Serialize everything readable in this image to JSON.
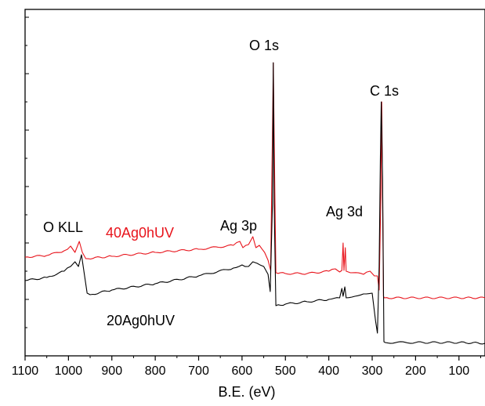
{
  "chart_data": {
    "type": "line",
    "title": "",
    "xlabel": "B.E. (eV)",
    "ylabel": "",
    "xlim": [
      1100,
      40
    ],
    "x_reversed": true,
    "xticks": [
      1100,
      1000,
      900,
      800,
      700,
      600,
      500,
      400,
      300,
      200,
      100
    ],
    "yticks_labeled": false,
    "grid": false,
    "legend": "none",
    "series": [
      {
        "name": "40Ag0hUV",
        "color": "#e8141c",
        "points": [
          [
            1100,
            328
          ],
          [
            1050,
            326
          ],
          [
            1010,
            320
          ],
          [
            995,
            314
          ],
          [
            985,
            322
          ],
          [
            975,
            308
          ],
          [
            968,
            322
          ],
          [
            960,
            330
          ],
          [
            900,
            327
          ],
          [
            800,
            322
          ],
          [
            700,
            318
          ],
          [
            620,
            313
          ],
          [
            605,
            308
          ],
          [
            598,
            316
          ],
          [
            585,
            312
          ],
          [
            575,
            302
          ],
          [
            568,
            316
          ],
          [
            560,
            313
          ],
          [
            548,
            322
          ],
          [
            540,
            332
          ],
          [
            534,
            345
          ],
          [
            530,
            175
          ],
          [
            528,
            80
          ],
          [
            526,
            175
          ],
          [
            522,
            348
          ],
          [
            500,
            349
          ],
          [
            450,
            349
          ],
          [
            400,
            346
          ],
          [
            385,
            343
          ],
          [
            375,
            347
          ],
          [
            370,
            345
          ],
          [
            367,
            310
          ],
          [
            365,
            345
          ],
          [
            362,
            316
          ],
          [
            360,
            346
          ],
          [
            350,
            348
          ],
          [
            320,
            350
          ],
          [
            305,
            346
          ],
          [
            295,
            352
          ],
          [
            288,
            352
          ],
          [
            284,
            370
          ],
          [
            280,
            250
          ],
          [
            278,
            130
          ],
          [
            276,
            250
          ],
          [
            274,
            378
          ],
          [
            272,
            380
          ],
          [
            200,
            380
          ],
          [
            100,
            380
          ],
          [
            40,
            380
          ]
        ]
      },
      {
        "name": "20Ag0hUV",
        "color": "#000000",
        "points": [
          [
            1100,
            358
          ],
          [
            1050,
            354
          ],
          [
            1010,
            346
          ],
          [
            995,
            340
          ],
          [
            985,
            334
          ],
          [
            977,
            340
          ],
          [
            970,
            325
          ],
          [
            962,
            355
          ],
          [
            957,
            374
          ],
          [
            950,
            376
          ],
          [
            900,
            370
          ],
          [
            800,
            362
          ],
          [
            700,
            352
          ],
          [
            620,
            342
          ],
          [
            600,
            338
          ],
          [
            585,
            340
          ],
          [
            575,
            334
          ],
          [
            565,
            336
          ],
          [
            550,
            340
          ],
          [
            540,
            350
          ],
          [
            535,
            372
          ],
          [
            530,
            260
          ],
          [
            528,
            80
          ],
          [
            526,
            260
          ],
          [
            522,
            390
          ],
          [
            500,
            388
          ],
          [
            450,
            385
          ],
          [
            400,
            382
          ],
          [
            375,
            380
          ],
          [
            370,
            368
          ],
          [
            367,
            378
          ],
          [
            363,
            366
          ],
          [
            360,
            380
          ],
          [
            340,
            378
          ],
          [
            320,
            375
          ],
          [
            300,
            374
          ],
          [
            292,
            410
          ],
          [
            288,
            425
          ],
          [
            284,
            340
          ],
          [
            281,
            200
          ],
          [
            279,
            130
          ],
          [
            276,
            230
          ],
          [
            273,
            436
          ],
          [
            270,
            437
          ],
          [
            200,
            437
          ],
          [
            100,
            437
          ],
          [
            40,
            438
          ]
        ]
      }
    ],
    "annotations": [
      {
        "text": "O 1s"
      },
      {
        "text": "C 1s"
      },
      {
        "text": "Ag 3d"
      },
      {
        "text": "Ag 3p"
      },
      {
        "text": "O KLL"
      },
      {
        "text": "40Ag0hUV",
        "color": "#e8141c"
      },
      {
        "text": "20Ag0hUV",
        "color": "#000000"
      }
    ]
  }
}
